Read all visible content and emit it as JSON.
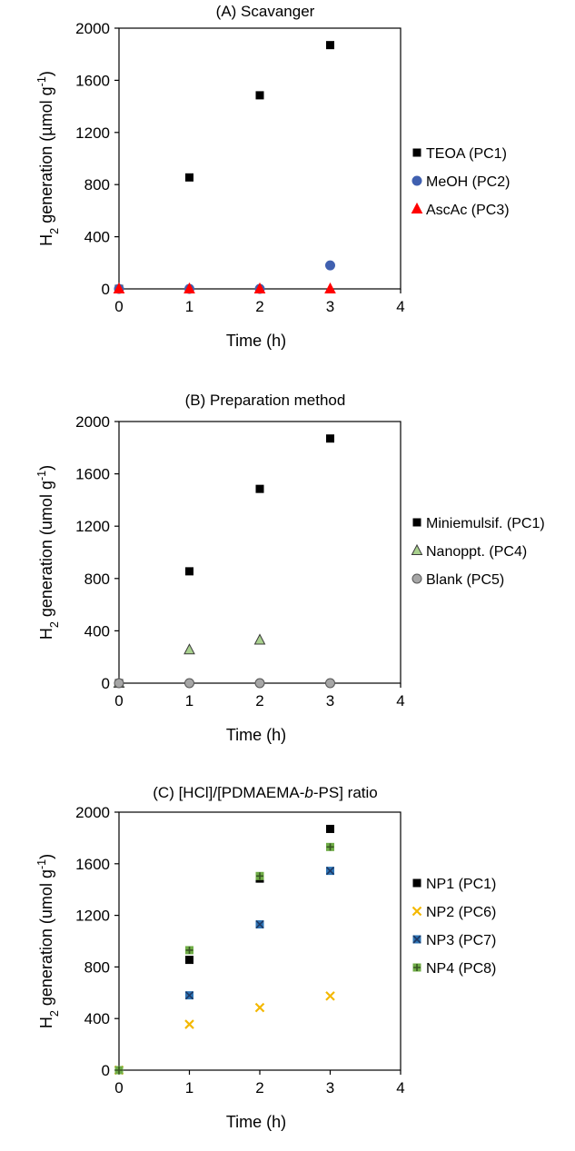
{
  "chart_data": [
    {
      "type": "scatter",
      "title": "(A) Scavanger",
      "xlabel": "Time (h)",
      "ylabel": {
        "pre": "H",
        "sub": "2",
        "mid": " generation (µmol g",
        "sup": "-1",
        "post": ")"
      },
      "xlim": [
        0,
        4
      ],
      "ylim": [
        0,
        2000
      ],
      "xticks": [
        0,
        1,
        2,
        3,
        4
      ],
      "yticks": [
        0,
        400,
        800,
        1200,
        1600,
        2000
      ],
      "grid": false,
      "legend_position": "right",
      "series": [
        {
          "name": "TEOA (PC1)",
          "marker": "square",
          "color": "#000000",
          "stroke": "#000000",
          "x": [
            0,
            1,
            2,
            3
          ],
          "y": [
            0,
            855,
            1485,
            1870
          ]
        },
        {
          "name": "MeOH (PC2)",
          "marker": "circle",
          "color": "#4060b0",
          "stroke": "#4060b0",
          "x": [
            0,
            1,
            2,
            3
          ],
          "y": [
            0,
            0,
            0,
            180
          ]
        },
        {
          "name": "AscAc (PC3)",
          "marker": "triangle",
          "color": "#ff0000",
          "stroke": "#ff0000",
          "x": [
            0,
            1,
            2,
            3
          ],
          "y": [
            0,
            0,
            0,
            0
          ]
        }
      ]
    },
    {
      "type": "scatter",
      "title": "(B) Preparation method",
      "xlabel": "Time (h)",
      "ylabel": {
        "pre": "H",
        "sub": "2",
        "mid": " generation (umol g",
        "sup": "-1",
        "post": ")"
      },
      "xlim": [
        0,
        4
      ],
      "ylim": [
        0,
        2000
      ],
      "xticks": [
        0,
        1,
        2,
        3,
        4
      ],
      "yticks": [
        0,
        400,
        800,
        1200,
        1600,
        2000
      ],
      "grid": false,
      "legend_position": "right",
      "series": [
        {
          "name": "Miniemulsif. (PC1)",
          "marker": "square",
          "color": "#000000",
          "stroke": "#000000",
          "x": [
            0,
            1,
            2,
            3
          ],
          "y": [
            0,
            855,
            1485,
            1870
          ]
        },
        {
          "name": "Nanoppt. (PC4)",
          "marker": "triangle",
          "color": "#a9d18e",
          "stroke": "#3a3a3a",
          "x": [
            0,
            1,
            2
          ],
          "y": [
            0,
            255,
            330
          ]
        },
        {
          "name": "Blank (PC5)",
          "marker": "circle",
          "color": "#a6a6a6",
          "stroke": "#555555",
          "x": [
            0,
            1,
            2,
            3
          ],
          "y": [
            0,
            0,
            0,
            0
          ]
        }
      ]
    },
    {
      "type": "scatter",
      "title": {
        "pre": "(C) [HCl]/[PDMAEMA-",
        "ital": "b",
        "post": "-PS] ratio"
      },
      "xlabel": "Time (h)",
      "ylabel": {
        "pre": "H",
        "sub": "2",
        "mid": " generation (umol g",
        "sup": "-1",
        "post": ")"
      },
      "xlim": [
        0,
        4
      ],
      "ylim": [
        0,
        2000
      ],
      "xticks": [
        0,
        1,
        2,
        3,
        4
      ],
      "yticks": [
        0,
        400,
        800,
        1200,
        1600,
        2000
      ],
      "grid": false,
      "legend_position": "right",
      "series": [
        {
          "name": "NP1 (PC1)",
          "marker": "square",
          "color": "#000000",
          "stroke": "#000000",
          "x": [
            0,
            1,
            2,
            3
          ],
          "y": [
            0,
            855,
            1485,
            1870
          ]
        },
        {
          "name": "NP2 (PC6)",
          "marker": "x",
          "color": "#f4b800",
          "stroke": "#f4b800",
          "x": [
            0,
            1,
            2,
            3
          ],
          "y": [
            0,
            355,
            485,
            575
          ]
        },
        {
          "name": "NP3 (PC7)",
          "marker": "star",
          "color": "#2e75b6",
          "stroke": "#1f3864",
          "x": [
            0,
            1,
            2,
            3
          ],
          "y": [
            0,
            580,
            1130,
            1545
          ]
        },
        {
          "name": "NP4 (PC8)",
          "marker": "plus",
          "color": "#70ad47",
          "stroke": "#375623",
          "x": [
            0,
            1,
            2,
            3
          ],
          "y": [
            0,
            930,
            1505,
            1730
          ]
        }
      ]
    }
  ]
}
